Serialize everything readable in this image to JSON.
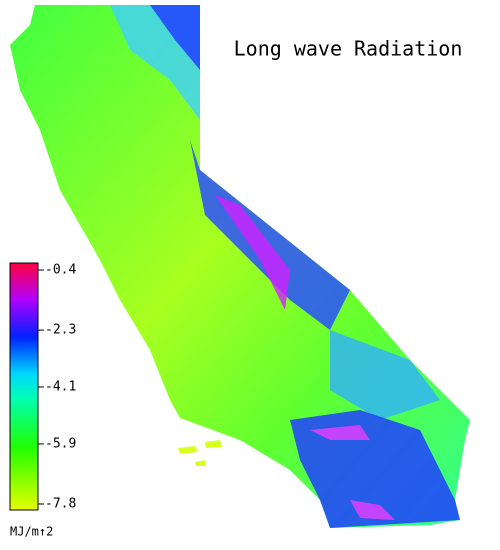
{
  "title": "Long wave Radiation",
  "colorbar": {
    "lim": [
      -7.8,
      -0.4
    ],
    "ticks": [
      -0.4,
      -2.3,
      -4.1,
      -5.9,
      -7.8
    ],
    "unit_label": "MJ/m↑2"
  }
}
